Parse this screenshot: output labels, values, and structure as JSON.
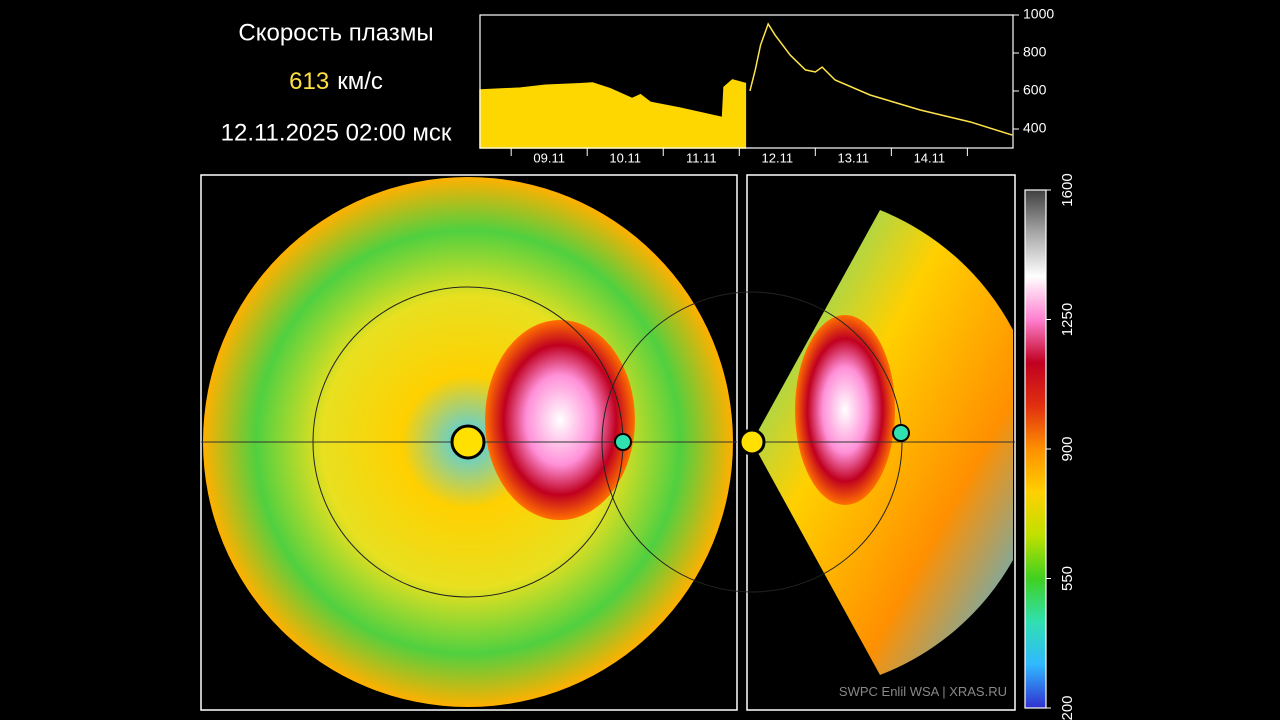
{
  "header": {
    "title": "Скорость плазмы",
    "speed": 613,
    "speed_unit": "км/с",
    "datetime": "12.11.2025 02:00 мск"
  },
  "footer": {
    "credit": "SWPC Enlil WSA  |  XRAS.RU"
  },
  "chart_data": [
    {
      "type": "line",
      "xlim": [
        -0.41,
        6.6
      ],
      "ylim": [
        300,
        1000
      ],
      "xticks": [
        {
          "value": 0.5,
          "label": "09.11"
        },
        {
          "value": 1.5,
          "label": "10.11"
        },
        {
          "value": 2.5,
          "label": "11.11"
        },
        {
          "value": 3.5,
          "label": "12.11"
        },
        {
          "value": 4.5,
          "label": "13.11"
        },
        {
          "value": 5.5,
          "label": "14.11"
        }
      ],
      "yticks": [
        400,
        600,
        800,
        1000
      ],
      "series": [
        {
          "color": "#ffd700",
          "fill": true,
          "x": [
            -0.41,
            0.12,
            0.45,
            0.91,
            1.07,
            1.3,
            1.59,
            1.7,
            1.83,
            2.22,
            2.78,
            2.8,
            2.91,
            3.08
          ],
          "values": [
            605,
            615,
            630,
            638,
            642,
            612,
            560,
            580,
            540,
            510,
            460,
            620,
            658,
            640
          ]
        },
        {
          "color": "#ffe44a",
          "fill": false,
          "x": [
            3.14,
            3.21,
            3.28,
            3.38,
            3.47,
            3.67,
            3.87,
            4.0,
            4.09,
            4.26,
            4.72,
            5.38,
            6.04,
            6.59
          ],
          "values": [
            600,
            711,
            842,
            953,
            895,
            789,
            711,
            700,
            726,
            658,
            579,
            500,
            437,
            368
          ]
        }
      ]
    },
    {
      "type": "colorbar",
      "ylim": [
        200,
        1600
      ],
      "yticks": [
        200,
        550,
        900,
        1250,
        1600
      ],
      "colors": [
        "#3030d0",
        "#30b8ff",
        "#30e0b0",
        "#40d020",
        "#c0e000",
        "#ffd000",
        "#ff9000",
        "#e03010",
        "#c00020",
        "#ff80d0",
        "#ffffff",
        "#a8a8a8",
        "#404040"
      ]
    }
  ]
}
